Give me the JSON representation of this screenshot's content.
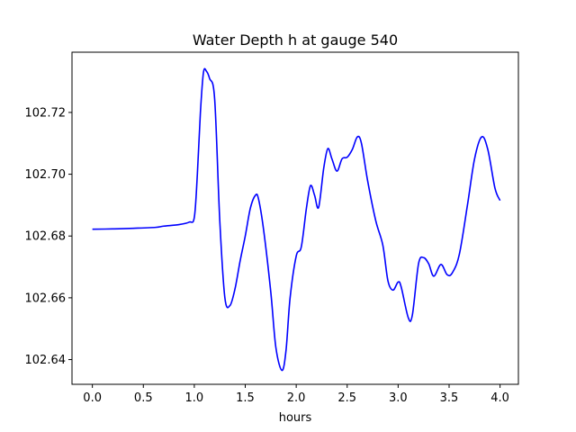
{
  "chart_data": {
    "type": "line",
    "title": "Water Depth h at gauge 540",
    "xlabel": "hours",
    "ylabel": "",
    "xlim": [
      -0.2,
      4.18
    ],
    "ylim": [
      102.632,
      102.7395
    ],
    "xticks": [
      0.0,
      0.5,
      1.0,
      1.5,
      2.0,
      2.5,
      3.0,
      3.5,
      4.0
    ],
    "xtick_labels": [
      "0.0",
      "0.5",
      "1.0",
      "1.5",
      "2.0",
      "2.5",
      "3.0",
      "3.5",
      "4.0"
    ],
    "yticks": [
      102.64,
      102.66,
      102.68,
      102.7,
      102.72
    ],
    "ytick_labels": [
      "102.64",
      "102.66",
      "102.68",
      "102.70",
      "102.72"
    ],
    "grid": false,
    "colors": {
      "line": "#0000ff",
      "axes": "#000000"
    },
    "series": [
      {
        "name": "",
        "x": [
          0.0,
          0.2,
          0.4,
          0.62,
          0.7,
          0.85,
          0.95,
          1.0,
          1.03,
          1.06,
          1.09,
          1.12,
          1.15,
          1.2,
          1.25,
          1.3,
          1.35,
          1.4,
          1.45,
          1.5,
          1.55,
          1.6,
          1.63,
          1.68,
          1.75,
          1.8,
          1.86,
          1.9,
          1.94,
          2.0,
          2.05,
          2.1,
          2.14,
          2.18,
          2.22,
          2.27,
          2.31,
          2.35,
          2.4,
          2.45,
          2.5,
          2.55,
          2.6,
          2.64,
          2.7,
          2.78,
          2.85,
          2.9,
          2.95,
          3.0,
          3.03,
          3.1,
          3.14,
          3.2,
          3.25,
          3.3,
          3.35,
          3.42,
          3.48,
          3.53,
          3.6,
          3.68,
          3.75,
          3.82,
          3.88,
          3.95,
          4.0
        ],
        "y": [
          102.6822,
          102.6823,
          102.6825,
          102.6828,
          102.6832,
          102.6837,
          102.6845,
          102.686,
          102.7,
          102.72,
          102.733,
          102.7333,
          102.731,
          102.7242,
          102.685,
          102.66,
          102.6575,
          102.663,
          102.672,
          102.68,
          102.689,
          102.6932,
          102.692,
          102.682,
          102.662,
          102.644,
          102.6365,
          102.643,
          102.66,
          102.6735,
          102.6765,
          102.689,
          102.6963,
          102.6932,
          102.6893,
          102.702,
          102.7083,
          102.705,
          102.701,
          102.705,
          102.7055,
          102.708,
          102.7121,
          102.71,
          102.698,
          102.685,
          102.677,
          102.6655,
          102.6625,
          102.6651,
          102.6635,
          102.6535,
          102.6545,
          102.671,
          102.673,
          102.671,
          102.667,
          102.6708,
          102.6675,
          102.668,
          102.674,
          102.69,
          102.705,
          102.7121,
          102.708,
          102.6955,
          102.6915
        ]
      }
    ]
  }
}
